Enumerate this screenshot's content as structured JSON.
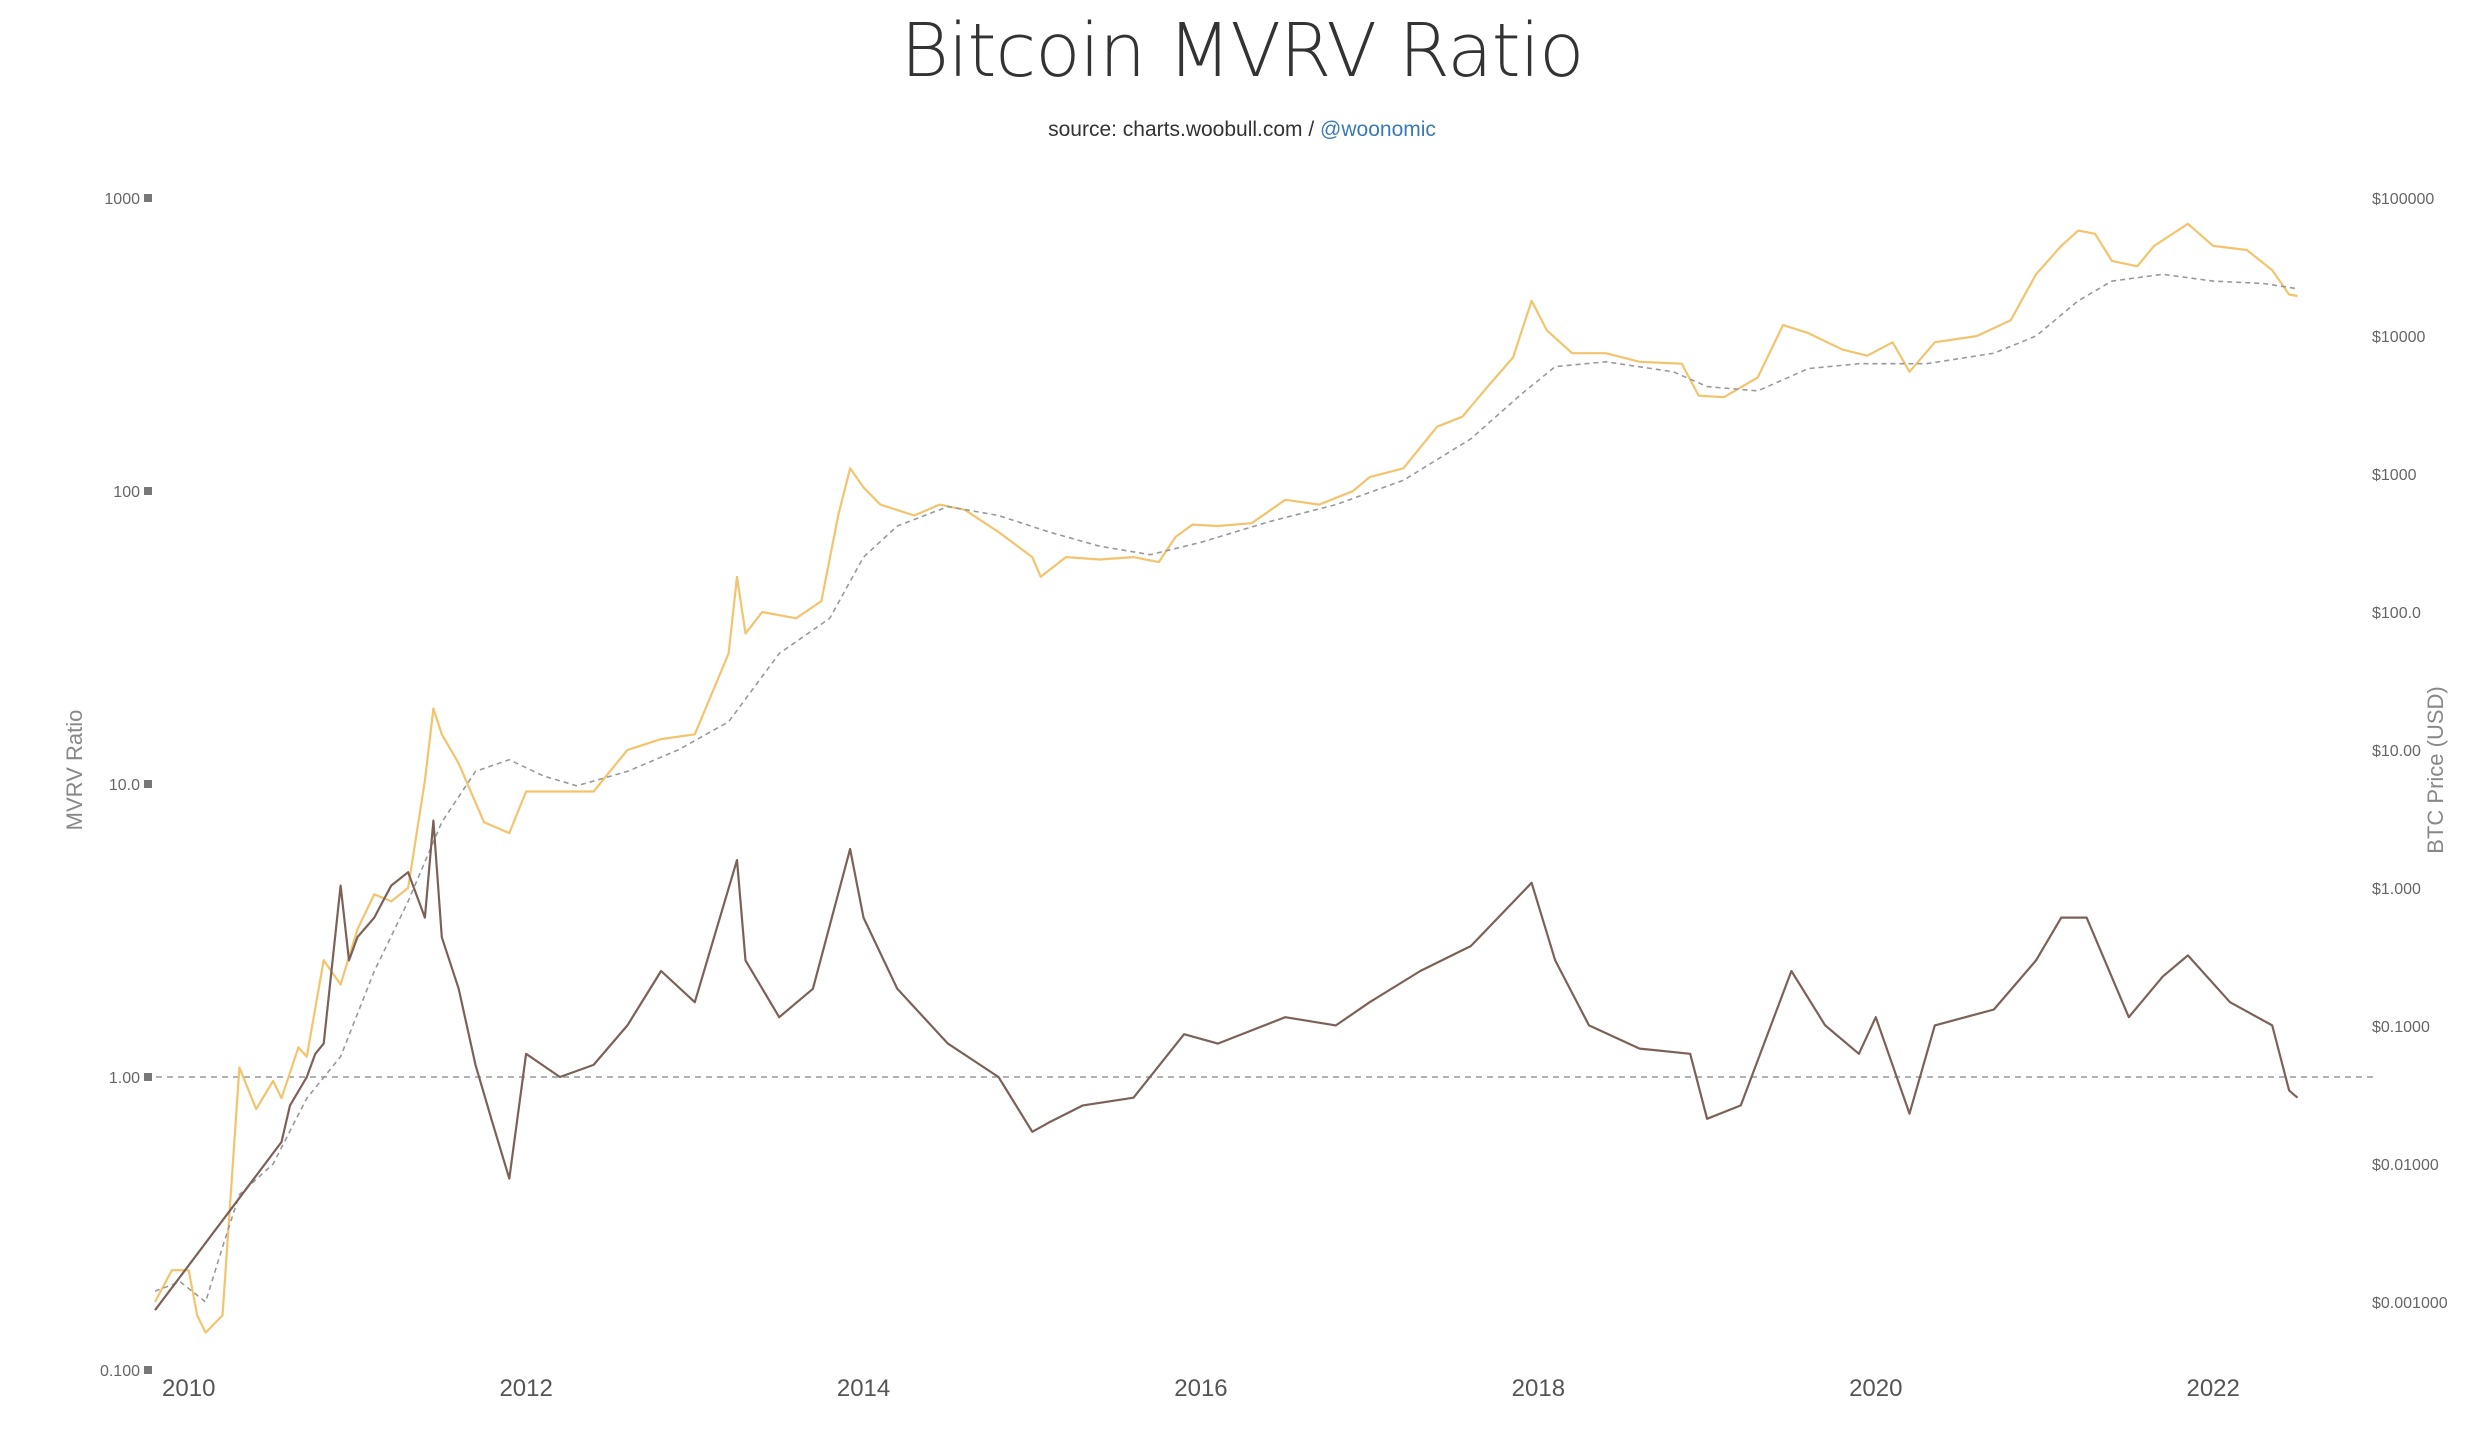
{
  "chart_data": {
    "type": "line",
    "title": "Bitcoin MVRV Ratio",
    "subtitle": {
      "prefix": "source: charts.woobull.com / ",
      "link": "@woonomic"
    },
    "y_left_label": "MVRV Ratio",
    "y_right_label": "BTC Price (USD)",
    "y_left_scale": "log",
    "y_right_scale": "log",
    "y_left_range": [
      0.1,
      1000
    ],
    "y_right_range": [
      0.001,
      100000
    ],
    "x_range": [
      2009.8,
      2022.9
    ],
    "y_left_ticks": [
      {
        "value": 1000,
        "label": "1000"
      },
      {
        "value": 100,
        "label": "100"
      },
      {
        "value": 10,
        "label": "10.0"
      },
      {
        "value": 1,
        "label": "1.00"
      },
      {
        "value": 0.1,
        "label": "0.100"
      }
    ],
    "y_right_ticks": [
      {
        "value": 100000,
        "label": "$100000"
      },
      {
        "value": 10000,
        "label": "$10000"
      },
      {
        "value": 1000,
        "label": "$1000"
      },
      {
        "value": 100,
        "label": "$100.0"
      },
      {
        "value": 10,
        "label": "$10.00"
      },
      {
        "value": 1,
        "label": "$1.000"
      },
      {
        "value": 0.1,
        "label": "$0.1000"
      },
      {
        "value": 0.01,
        "label": "$0.01000"
      },
      {
        "value": 0.001,
        "label": "$0.001000"
      }
    ],
    "x_ticks": [
      {
        "value": 2010,
        "label": "2010"
      },
      {
        "value": 2012,
        "label": "2012"
      },
      {
        "value": 2014,
        "label": "2014"
      },
      {
        "value": 2016,
        "label": "2016"
      },
      {
        "value": 2018,
        "label": "2018"
      },
      {
        "value": 2020,
        "label": "2020"
      },
      {
        "value": 2022,
        "label": "2022"
      }
    ],
    "reference_line": {
      "axis": "left",
      "value": 1.0,
      "style": "dashed"
    },
    "colors": {
      "price": "#f2c46d",
      "realized_price": "#999999",
      "mvrv": "#7a6259",
      "reference": "#999999"
    },
    "series": [
      {
        "key": "price",
        "axis": "right",
        "style": "solid",
        "points": [
          [
            2009.8,
            0.001
          ],
          [
            2009.9,
            0.0017
          ],
          [
            2010.0,
            0.0017
          ],
          [
            2010.05,
            0.0008
          ],
          [
            2010.1,
            0.0006
          ],
          [
            2010.2,
            0.0008
          ],
          [
            2010.3,
            0.05
          ],
          [
            2010.4,
            0.025
          ],
          [
            2010.5,
            0.04
          ],
          [
            2010.55,
            0.03
          ],
          [
            2010.65,
            0.07
          ],
          [
            2010.7,
            0.06
          ],
          [
            2010.8,
            0.3
          ],
          [
            2010.9,
            0.2
          ],
          [
            2011.0,
            0.5
          ],
          [
            2011.1,
            0.9
          ],
          [
            2011.2,
            0.8
          ],
          [
            2011.3,
            1.0
          ],
          [
            2011.4,
            6.0
          ],
          [
            2011.45,
            20
          ],
          [
            2011.5,
            13
          ],
          [
            2011.6,
            8
          ],
          [
            2011.75,
            3.0
          ],
          [
            2011.9,
            2.5
          ],
          [
            2012.0,
            5.0
          ],
          [
            2012.2,
            5.0
          ],
          [
            2012.4,
            5.0
          ],
          [
            2012.6,
            10
          ],
          [
            2012.8,
            12
          ],
          [
            2013.0,
            13
          ],
          [
            2013.2,
            50
          ],
          [
            2013.25,
            180
          ],
          [
            2013.3,
            70
          ],
          [
            2013.4,
            100
          ],
          [
            2013.6,
            90
          ],
          [
            2013.75,
            120
          ],
          [
            2013.85,
            500
          ],
          [
            2013.92,
            1100
          ],
          [
            2014.0,
            800
          ],
          [
            2014.1,
            600
          ],
          [
            2014.3,
            500
          ],
          [
            2014.45,
            600
          ],
          [
            2014.6,
            550
          ],
          [
            2014.8,
            380
          ],
          [
            2015.0,
            250
          ],
          [
            2015.05,
            180
          ],
          [
            2015.2,
            250
          ],
          [
            2015.4,
            240
          ],
          [
            2015.6,
            250
          ],
          [
            2015.75,
            230
          ],
          [
            2015.85,
            350
          ],
          [
            2015.95,
            430
          ],
          [
            2016.1,
            420
          ],
          [
            2016.3,
            440
          ],
          [
            2016.5,
            650
          ],
          [
            2016.7,
            600
          ],
          [
            2016.9,
            750
          ],
          [
            2017.0,
            950
          ],
          [
            2017.2,
            1100
          ],
          [
            2017.4,
            2200
          ],
          [
            2017.55,
            2600
          ],
          [
            2017.7,
            4300
          ],
          [
            2017.85,
            7000
          ],
          [
            2017.96,
            18000
          ],
          [
            2018.05,
            11000
          ],
          [
            2018.2,
            7500
          ],
          [
            2018.4,
            7500
          ],
          [
            2018.6,
            6500
          ],
          [
            2018.85,
            6300
          ],
          [
            2018.95,
            3700
          ],
          [
            2019.1,
            3600
          ],
          [
            2019.3,
            5000
          ],
          [
            2019.45,
            12000
          ],
          [
            2019.6,
            10500
          ],
          [
            2019.8,
            8000
          ],
          [
            2019.95,
            7200
          ],
          [
            2020.1,
            9000
          ],
          [
            2020.2,
            5500
          ],
          [
            2020.35,
            9000
          ],
          [
            2020.6,
            10000
          ],
          [
            2020.8,
            13000
          ],
          [
            2020.95,
            28000
          ],
          [
            2021.1,
            45000
          ],
          [
            2021.2,
            58000
          ],
          [
            2021.3,
            55000
          ],
          [
            2021.4,
            35000
          ],
          [
            2021.55,
            32000
          ],
          [
            2021.65,
            45000
          ],
          [
            2021.85,
            65000
          ],
          [
            2022.0,
            45000
          ],
          [
            2022.2,
            42000
          ],
          [
            2022.35,
            30000
          ],
          [
            2022.45,
            20000
          ],
          [
            2022.5,
            19500
          ]
        ]
      },
      {
        "key": "realized_price",
        "axis": "right",
        "style": "dashed",
        "points": [
          [
            2009.8,
            0.0012
          ],
          [
            2009.95,
            0.0014
          ],
          [
            2010.1,
            0.001
          ],
          [
            2010.2,
            0.0025
          ],
          [
            2010.3,
            0.006
          ],
          [
            2010.5,
            0.01
          ],
          [
            2010.7,
            0.03
          ],
          [
            2010.9,
            0.06
          ],
          [
            2011.1,
            0.25
          ],
          [
            2011.3,
            0.8
          ],
          [
            2011.5,
            3.0
          ],
          [
            2011.7,
            7.0
          ],
          [
            2011.9,
            8.5
          ],
          [
            2012.1,
            6.5
          ],
          [
            2012.3,
            5.5
          ],
          [
            2012.6,
            7.0
          ],
          [
            2012.9,
            10
          ],
          [
            2013.2,
            16
          ],
          [
            2013.5,
            50
          ],
          [
            2013.8,
            90
          ],
          [
            2014.0,
            250
          ],
          [
            2014.2,
            420
          ],
          [
            2014.5,
            580
          ],
          [
            2014.8,
            500
          ],
          [
            2015.1,
            380
          ],
          [
            2015.4,
            300
          ],
          [
            2015.7,
            260
          ],
          [
            2016.0,
            320
          ],
          [
            2016.4,
            450
          ],
          [
            2016.8,
            600
          ],
          [
            2017.2,
            900
          ],
          [
            2017.6,
            1800
          ],
          [
            2017.9,
            3800
          ],
          [
            2018.1,
            6000
          ],
          [
            2018.4,
            6500
          ],
          [
            2018.8,
            5500
          ],
          [
            2019.0,
            4300
          ],
          [
            2019.3,
            4000
          ],
          [
            2019.6,
            5800
          ],
          [
            2019.9,
            6300
          ],
          [
            2020.3,
            6300
          ],
          [
            2020.7,
            7500
          ],
          [
            2020.95,
            10000
          ],
          [
            2021.2,
            18000
          ],
          [
            2021.4,
            25000
          ],
          [
            2021.7,
            28000
          ],
          [
            2022.0,
            25000
          ],
          [
            2022.3,
            24000
          ],
          [
            2022.5,
            22000
          ]
        ]
      },
      {
        "key": "mvrv",
        "axis": "left",
        "style": "solid",
        "points": [
          [
            2009.8,
            0.16
          ],
          [
            2010.55,
            0.6
          ],
          [
            2010.6,
            0.8
          ],
          [
            2010.7,
            1.0
          ],
          [
            2010.75,
            1.2
          ],
          [
            2010.8,
            1.3
          ],
          [
            2010.9,
            4.5
          ],
          [
            2010.95,
            2.5
          ],
          [
            2011.0,
            3.0
          ],
          [
            2011.1,
            3.5
          ],
          [
            2011.2,
            4.5
          ],
          [
            2011.3,
            5.0
          ],
          [
            2011.4,
            3.5
          ],
          [
            2011.45,
            7.5
          ],
          [
            2011.5,
            3.0
          ],
          [
            2011.6,
            2.0
          ],
          [
            2011.7,
            1.1
          ],
          [
            2011.8,
            0.7
          ],
          [
            2011.9,
            0.45
          ],
          [
            2012.0,
            1.2
          ],
          [
            2012.2,
            1.0
          ],
          [
            2012.4,
            1.1
          ],
          [
            2012.6,
            1.5
          ],
          [
            2012.8,
            2.3
          ],
          [
            2013.0,
            1.8
          ],
          [
            2013.25,
            5.5
          ],
          [
            2013.3,
            2.5
          ],
          [
            2013.5,
            1.6
          ],
          [
            2013.7,
            2.0
          ],
          [
            2013.92,
            6.0
          ],
          [
            2014.0,
            3.5
          ],
          [
            2014.2,
            2.0
          ],
          [
            2014.5,
            1.3
          ],
          [
            2014.8,
            1.0
          ],
          [
            2015.0,
            0.65
          ],
          [
            2015.1,
            0.7
          ],
          [
            2015.3,
            0.8
          ],
          [
            2015.6,
            0.85
          ],
          [
            2015.9,
            1.4
          ],
          [
            2016.1,
            1.3
          ],
          [
            2016.5,
            1.6
          ],
          [
            2016.8,
            1.5
          ],
          [
            2017.0,
            1.8
          ],
          [
            2017.3,
            2.3
          ],
          [
            2017.6,
            2.8
          ],
          [
            2017.96,
            4.6
          ],
          [
            2018.1,
            2.5
          ],
          [
            2018.3,
            1.5
          ],
          [
            2018.6,
            1.25
          ],
          [
            2018.9,
            1.2
          ],
          [
            2019.0,
            0.72
          ],
          [
            2019.2,
            0.8
          ],
          [
            2019.5,
            2.3
          ],
          [
            2019.7,
            1.5
          ],
          [
            2019.9,
            1.2
          ],
          [
            2020.0,
            1.6
          ],
          [
            2020.2,
            0.75
          ],
          [
            2020.35,
            1.5
          ],
          [
            2020.7,
            1.7
          ],
          [
            2020.95,
            2.5
          ],
          [
            2021.1,
            3.5
          ],
          [
            2021.25,
            3.5
          ],
          [
            2021.5,
            1.6
          ],
          [
            2021.7,
            2.2
          ],
          [
            2021.85,
            2.6
          ],
          [
            2022.1,
            1.8
          ],
          [
            2022.35,
            1.5
          ],
          [
            2022.45,
            0.9
          ],
          [
            2022.5,
            0.85
          ]
        ]
      }
    ]
  }
}
